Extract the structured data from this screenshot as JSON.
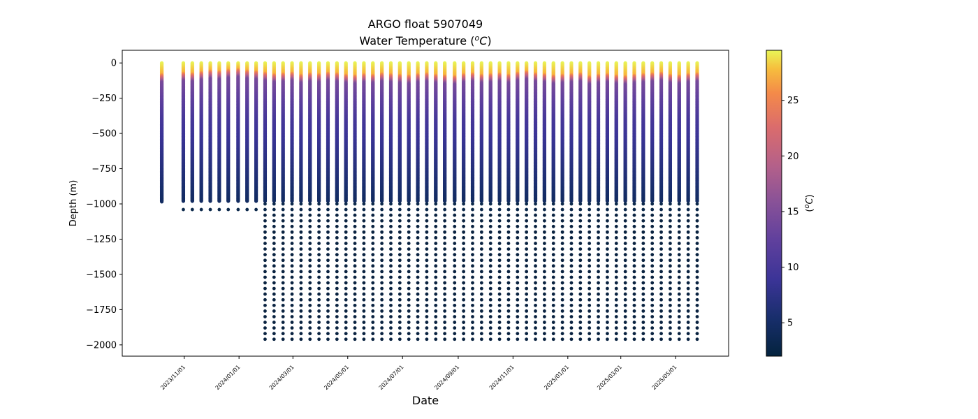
{
  "chart_data": {
    "type": "scatter",
    "title": "ARGO float 5907049",
    "subtitle_prefix": "Water Temperature (",
    "subtitle_unit_sup": "o",
    "subtitle_unit": "C",
    "subtitle_suffix": ")",
    "xlabel": "Date",
    "ylabel": "Depth (m)",
    "colorbar_label_prefix": "(",
    "colorbar_label_sup": "o",
    "colorbar_label_unit": "C",
    "colorbar_label_suffix": ")",
    "colormap": "thermal",
    "colorbar_range": [
      2,
      29.5
    ],
    "colorbar_ticks": [
      "5",
      "10",
      "15",
      "20",
      "25"
    ],
    "xlim": [
      "2023-08-24",
      "2025-06-29"
    ],
    "ylim": [
      -2080,
      90
    ],
    "x_ticks": [
      "2023/11/01",
      "2024/01/01",
      "2024/03/01",
      "2024/05/01",
      "2024/07/01",
      "2024/09/01",
      "2024/11/01",
      "2025/01/01",
      "2025/03/01",
      "2025/05/01"
    ],
    "y_ticks": [
      "0",
      "−250",
      "−500",
      "−750",
      "−1000",
      "−1250",
      "−1500",
      "−1750",
      "−2000"
    ],
    "profile_interval_days": 10,
    "profile_dates": [
      "2023-10-07",
      "2023-10-31",
      "2023-11-10",
      "2023-11-20",
      "2023-11-30",
      "2023-12-10",
      "2023-12-20",
      "2023-12-31",
      "2024-01-10",
      "2024-01-20",
      "2024-01-30",
      "2024-02-09",
      "2024-02-19",
      "2024-02-29",
      "2024-03-10",
      "2024-03-20",
      "2024-03-30",
      "2024-04-09",
      "2024-04-19",
      "2024-04-29",
      "2024-05-09",
      "2024-05-19",
      "2024-05-29",
      "2024-06-08",
      "2024-06-18",
      "2024-06-28",
      "2024-07-08",
      "2024-07-18",
      "2024-07-28",
      "2024-08-07",
      "2024-08-17",
      "2024-08-28",
      "2024-09-07",
      "2024-09-17",
      "2024-09-27",
      "2024-10-07",
      "2024-10-17",
      "2024-10-27",
      "2024-11-06",
      "2024-11-16",
      "2024-11-26",
      "2024-12-06",
      "2024-12-16",
      "2024-12-26",
      "2025-01-05",
      "2025-01-15",
      "2025-01-25",
      "2025-02-04",
      "2025-02-14",
      "2025-02-24",
      "2025-03-06",
      "2025-03-16",
      "2025-03-26",
      "2025-04-05",
      "2025-04-15",
      "2025-04-25",
      "2025-05-05",
      "2025-05-15",
      "2025-05-25"
    ],
    "surface_temp_c": 29.5,
    "mixed_layer_depth_m": [
      80,
      70,
      75,
      65,
      55,
      60,
      50,
      45,
      55,
      60,
      70,
      80,
      75,
      70,
      85,
      75,
      80,
      70,
      75,
      85,
      90,
      80,
      85,
      75,
      80,
      85,
      90,
      80,
      75,
      85,
      90,
      95,
      80,
      75,
      85,
      80,
      75,
      85,
      70,
      60,
      75,
      80,
      90,
      85,
      80,
      75,
      95,
      85,
      80,
      90,
      95,
      85,
      80,
      75,
      70,
      85,
      90,
      80,
      75
    ],
    "deep_temp_c": 2.5,
    "shallow_profile_depth_m": 1000,
    "deep_profile_max_depth_m": 1980,
    "deep_profile_start_date": "2024-01-30"
  }
}
